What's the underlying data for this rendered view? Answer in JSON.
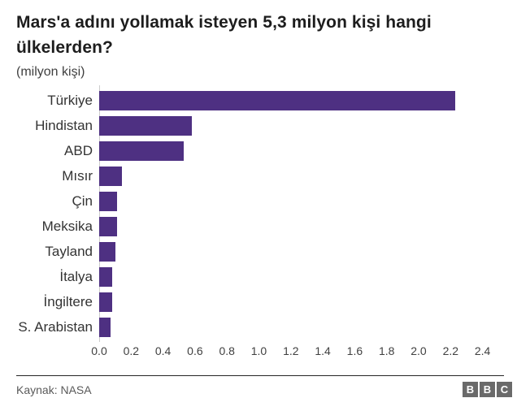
{
  "header": {
    "title": "Mars'a adını yollamak isteyen 5,3 milyon kişi hangi ülkelerden?",
    "subtitle": "(milyon kişi)"
  },
  "chart_data": {
    "type": "bar",
    "orientation": "horizontal",
    "title": "Mars'a adını yollamak isteyen 5,3 milyon kişi hangi ülkelerden?",
    "subtitle": "(milyon kişi)",
    "categories": [
      "Türkiye",
      "Hindistan",
      "ABD",
      "Mısır",
      "Çin",
      "Meksika",
      "Tayland",
      "İtalya",
      "İngiltere",
      "S. Arabistan"
    ],
    "values": [
      2.23,
      0.58,
      0.53,
      0.14,
      0.11,
      0.11,
      0.1,
      0.08,
      0.08,
      0.07
    ],
    "xlabel": "",
    "ylabel": "",
    "xlim": [
      0,
      2.4
    ],
    "x_tick_labels": [
      "0.0",
      "0.2",
      "0.4",
      "0.6",
      "0.8",
      "1.0",
      "1.2",
      "1.4",
      "1.6",
      "1.8",
      "2.0",
      "2.2",
      "2.4"
    ],
    "x_tick_values": [
      0.0,
      0.2,
      0.4,
      0.6,
      0.8,
      1.0,
      1.2,
      1.4,
      1.6,
      1.8,
      2.0,
      2.2,
      2.4
    ],
    "grid": false,
    "legend": false,
    "bar_color": "#4e3082",
    "axis_line_color": "#cccccc"
  },
  "footer": {
    "source": "Kaynak: NASA",
    "logo_letters": [
      "B",
      "B",
      "C"
    ]
  }
}
